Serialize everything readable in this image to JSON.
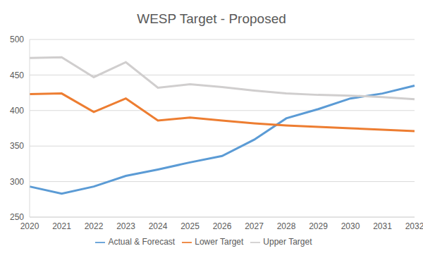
{
  "chart_data": {
    "type": "line",
    "title": "WESP Target - Proposed",
    "categories": [
      "2020",
      "2021",
      "2022",
      "2023",
      "2024",
      "2025",
      "2026",
      "2027",
      "2028",
      "2029",
      "2030",
      "2031",
      "2032"
    ],
    "series": [
      {
        "name": "Actual & Forecast",
        "color": "#5b9bd5",
        "values": [
          293,
          283,
          293,
          308,
          317,
          327,
          336,
          359,
          389,
          402,
          417,
          424,
          435
        ]
      },
      {
        "name": "Upper Target",
        "color": "#d0cece",
        "values": [
          474,
          475,
          447,
          468,
          432,
          437,
          433,
          428,
          424,
          422,
          421,
          419,
          416
        ]
      },
      {
        "name": "Lower Target",
        "color": "#ed7d31",
        "values": [
          423,
          424,
          398,
          417,
          386,
          390,
          386,
          382,
          379,
          377,
          375,
          373,
          371
        ]
      }
    ],
    "ylim": [
      250,
      500
    ],
    "yticks": [
      250,
      300,
      350,
      400,
      450,
      500
    ],
    "grid": true,
    "legend": "bottom"
  }
}
